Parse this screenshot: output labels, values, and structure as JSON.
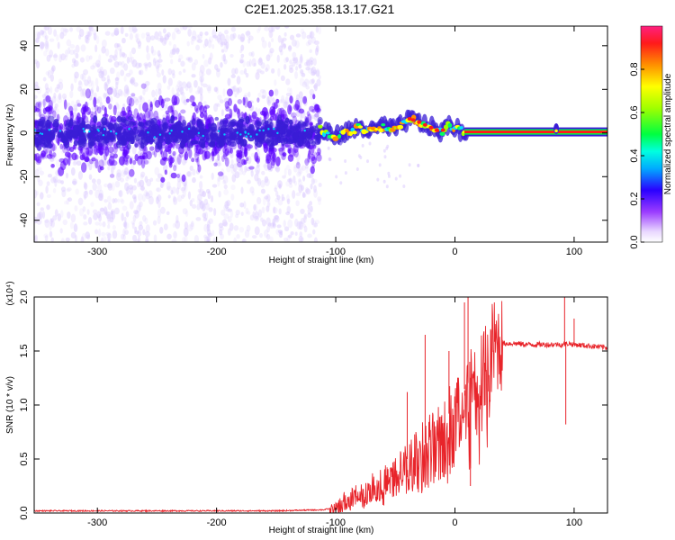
{
  "title": "C2E1.2025.358.13.17.G21",
  "colors": {
    "snr_line": "#e8242a",
    "spectro_bg": "#ffffff",
    "spectro_low": "#d9c8ff",
    "spectro_mid": "#5a00ff",
    "spectro_core": "#3a1dd6",
    "track_red": "#ff1a1a"
  },
  "chart_data": [
    {
      "type": "heatmap",
      "name": "spectrogram",
      "xlabel": "Height of straight line (km)",
      "ylabel": "Frequency (Hz)",
      "xlim": [
        -353,
        128
      ],
      "ylim": [
        -50,
        49
      ],
      "xticks": [
        -300,
        -200,
        -100,
        0,
        100
      ],
      "xtick_labels": [
        "-300",
        "-200",
        "-100",
        "0",
        "100"
      ],
      "yticks": [
        -40,
        -20,
        0,
        20,
        40
      ],
      "ytick_labels": [
        "-40",
        "-20",
        "0",
        "20",
        "40"
      ],
      "colorbar": {
        "label": "Normalized spectral amplitude",
        "range": [
          0.0,
          1.0
        ],
        "ticks": [
          0.0,
          0.2,
          0.4,
          0.6,
          0.8
        ],
        "tick_labels": [
          "0.0",
          "0.2",
          "0.4",
          "0.6",
          "0.8"
        ]
      },
      "noise_region_x": [
        -353,
        -113
      ],
      "track": [
        {
          "x": -113,
          "y": 1.5
        },
        {
          "x": -100,
          "y": -1.5
        },
        {
          "x": -90,
          "y": 0.5
        },
        {
          "x": -80,
          "y": 2.5
        },
        {
          "x": -70,
          "y": 1
        },
        {
          "x": -60,
          "y": 3
        },
        {
          "x": -50,
          "y": 1.5
        },
        {
          "x": -45,
          "y": 3.5
        },
        {
          "x": -38,
          "y": 6.5
        },
        {
          "x": -30,
          "y": 5
        },
        {
          "x": -20,
          "y": 2.5
        },
        {
          "x": -12,
          "y": 0.5
        },
        {
          "x": -5,
          "y": 3.5
        },
        {
          "x": 5,
          "y": 1
        },
        {
          "x": 10,
          "y": 0.5
        },
        {
          "x": 128,
          "y": 0.5
        }
      ]
    },
    {
      "type": "line",
      "name": "snr",
      "xlabel": "Height of straight line (km)",
      "ylabel": "SNR (10 * v/v)",
      "scale_label": "(x10⁴)",
      "xlim": [
        -353,
        128
      ],
      "ylim": [
        0.0,
        2.0
      ],
      "xticks": [
        -300,
        -200,
        -100,
        0,
        100
      ],
      "xtick_labels": [
        "-300",
        "-200",
        "-100",
        "0",
        "100"
      ],
      "yticks": [
        0.0,
        0.5,
        1.0,
        1.5,
        2.0
      ],
      "ytick_labels": [
        "0.0",
        "0.5",
        "1.0",
        "1.5",
        "2.0"
      ],
      "series": [
        {
          "name": "SNR",
          "x": [
            -353,
            -300,
            -250,
            -200,
            -150,
            -110,
            -100,
            -95,
            -90,
            -85,
            -80,
            -75,
            -70,
            -65,
            -60,
            -55,
            -50,
            -45,
            -40,
            -35,
            -30,
            -25,
            -20,
            -15,
            -10,
            -5,
            0,
            5,
            10,
            15,
            20,
            25,
            30,
            35,
            40,
            50,
            60,
            70,
            80,
            90,
            95,
            100,
            110,
            120,
            128
          ],
          "y": [
            0.02,
            0.02,
            0.02,
            0.02,
            0.02,
            0.03,
            0.05,
            0.1,
            0.12,
            0.15,
            0.18,
            0.2,
            0.24,
            0.28,
            0.3,
            0.33,
            0.38,
            0.42,
            0.5,
            0.55,
            0.6,
            0.65,
            0.72,
            0.78,
            0.85,
            0.92,
            1.0,
            1.1,
            1.18,
            1.3,
            1.4,
            1.46,
            1.52,
            1.56,
            1.57,
            1.57,
            1.56,
            1.56,
            1.56,
            1.56,
            1.57,
            1.56,
            1.55,
            1.54,
            1.53
          ]
        }
      ],
      "spikes": [
        {
          "x": -40,
          "y": 1.12
        },
        {
          "x": -25,
          "y": 1.65
        },
        {
          "x": -5,
          "y": 1.5
        },
        {
          "x": 8,
          "y": 1.95
        },
        {
          "x": 11,
          "y": 2.0
        },
        {
          "x": 13,
          "y": 0.25
        },
        {
          "x": 92,
          "y": 2.0
        },
        {
          "x": 93,
          "y": 0.82
        },
        {
          "x": 100,
          "y": 1.8
        }
      ]
    }
  ]
}
